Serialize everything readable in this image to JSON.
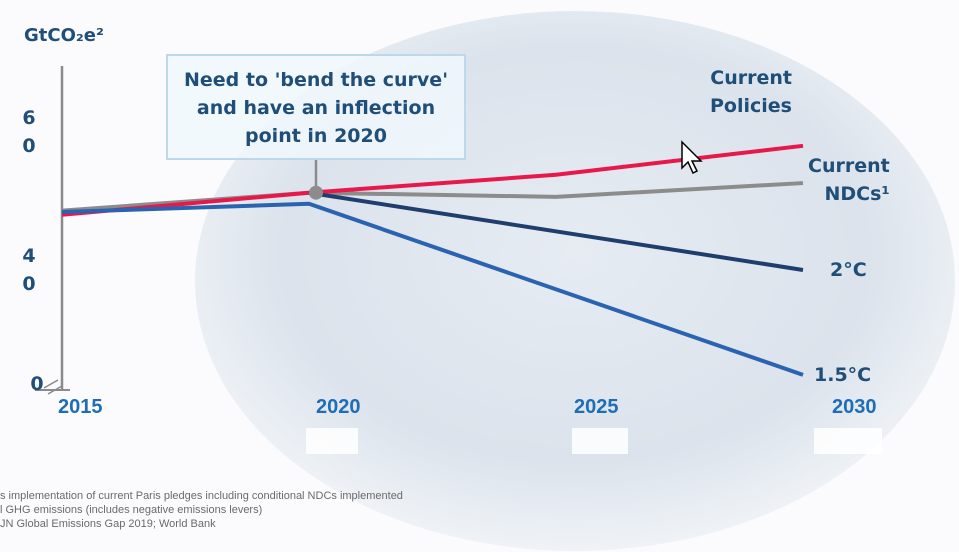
{
  "chart_data": {
    "type": "line",
    "ylabel": "GtCO₂e²",
    "y_ticks": [
      {
        "value": 0,
        "label": "0"
      },
      {
        "value": 40,
        "label": "4\n0"
      },
      {
        "value": 60,
        "label": "6\n0"
      }
    ],
    "y_axis_break": true,
    "x_ticks": [
      "2015",
      "2020",
      "2025",
      "2030"
    ],
    "xlim": [
      2015,
      2030
    ],
    "grid": false,
    "background": "faint globe image",
    "series": [
      {
        "name": "Current NDCs¹",
        "color": "#8c8c8c",
        "points": [
          [
            2015,
            48.6
          ],
          [
            2020,
            51.2
          ],
          [
            2025,
            50.6
          ],
          [
            2030,
            52.6
          ]
        ]
      },
      {
        "name": "Current Policies",
        "color": "#e8194a",
        "points": [
          [
            2015,
            48.0
          ],
          [
            2020,
            51.2
          ],
          [
            2025,
            53.8
          ],
          [
            2030,
            58.0
          ]
        ]
      },
      {
        "name": "2°C",
        "color": "#1f3e6e",
        "points": [
          [
            2020,
            51.2
          ],
          [
            2030,
            40.0
          ]
        ]
      },
      {
        "name": "1.5°C",
        "color": "#2a63b0",
        "points": [
          [
            2015,
            48.4
          ],
          [
            2020,
            49.6
          ],
          [
            2030,
            24.8
          ]
        ]
      }
    ],
    "series_labels": [
      {
        "series": 1,
        "lines": [
          "Current",
          "Policies"
        ]
      },
      {
        "series": 0,
        "lines": [
          "Current",
          "NDCs¹"
        ]
      },
      {
        "series": 2,
        "lines": [
          "2°C"
        ]
      },
      {
        "series": 3,
        "lines": [
          "1.5°C"
        ]
      }
    ],
    "annotation": {
      "text": [
        "Need to 'bend the curve'",
        "and have an inflection",
        "point in 2020"
      ],
      "at": [
        2020,
        51.2
      ]
    }
  },
  "footnotes": [
    "s implementation of current Paris pledges including conditional NDCs implemented",
    "l GHG emissions (includes negative emissions levers)",
    "JN Global Emissions Gap 2019; World Bank"
  ]
}
